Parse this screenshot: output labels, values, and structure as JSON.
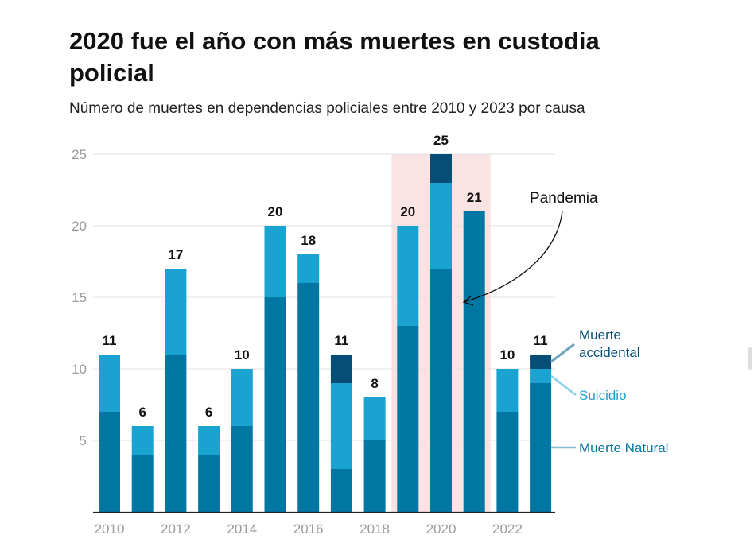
{
  "title": "2020 fue el año con más muertes en custodia policial",
  "subtitle": "Número de muertes en dependencias policiales entre 2010 y 2023 por causa",
  "chart_data": {
    "type": "bar",
    "stacked": true,
    "categories": [
      "2010",
      "2011",
      "2012",
      "2013",
      "2014",
      "2015",
      "2016",
      "2017",
      "2018",
      "2019",
      "2020",
      "2021",
      "2022",
      "2023"
    ],
    "x_tick_labels": [
      "2010",
      "2012",
      "2014",
      "2016",
      "2018",
      "2020",
      "2022"
    ],
    "series": [
      {
        "name": "Muerte Natural",
        "color": "#0077a3",
        "values": [
          7,
          4,
          11,
          4,
          6,
          15,
          16,
          3,
          5,
          13,
          17,
          21,
          7,
          9
        ]
      },
      {
        "name": "Suicidio",
        "color": "#1aa2d0",
        "values": [
          4,
          2,
          6,
          2,
          4,
          5,
          2,
          6,
          3,
          7,
          6,
          0,
          3,
          1
        ]
      },
      {
        "name": "Muerte accidental",
        "color": "#054f77",
        "values": [
          0,
          0,
          0,
          0,
          0,
          0,
          0,
          2,
          0,
          0,
          2,
          0,
          0,
          1
        ]
      }
    ],
    "totals": [
      "11",
      "6",
      "17",
      "6",
      "10",
      "20",
      "18",
      "11",
      "8",
      "20",
      "25",
      "21",
      "10",
      "11"
    ],
    "ylim": [
      0,
      25
    ],
    "yticks": [
      "5",
      "10",
      "15",
      "20",
      "25"
    ],
    "grid": true,
    "legend": "right",
    "legend_labels": {
      "accidental": [
        "Muerte",
        "accidental"
      ],
      "suicidio": "Suicidio",
      "natural": "Muerte Natural"
    },
    "annotation": {
      "text": "Pandemia",
      "highlight_from": "2019",
      "highlight_to": "2021",
      "highlight_color": "#f9e3e3"
    }
  }
}
